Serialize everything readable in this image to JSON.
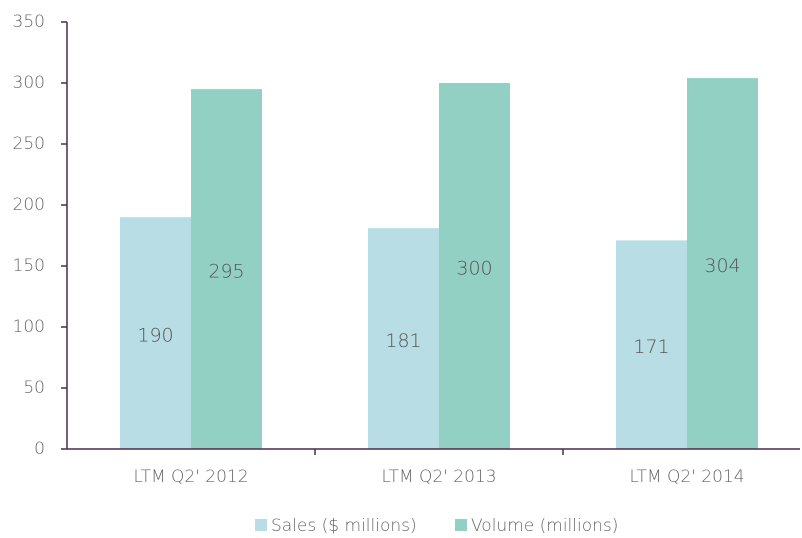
{
  "chart_data": {
    "type": "bar",
    "categories": [
      "LTM Q2' 2012",
      "LTM Q2' 2013",
      "LTM Q2' 2014"
    ],
    "series": [
      {
        "name": "Sales ($ millions)",
        "color": "#b8dde4",
        "values": [
          190,
          181,
          171
        ]
      },
      {
        "name": "Volume (millions)",
        "color": "#92d0c3",
        "values": [
          295,
          300,
          304
        ]
      }
    ],
    "ylim": [
      0,
      350
    ],
    "yticks": [
      0,
      50,
      100,
      150,
      200,
      250,
      300,
      350
    ],
    "legend": "bottom"
  }
}
